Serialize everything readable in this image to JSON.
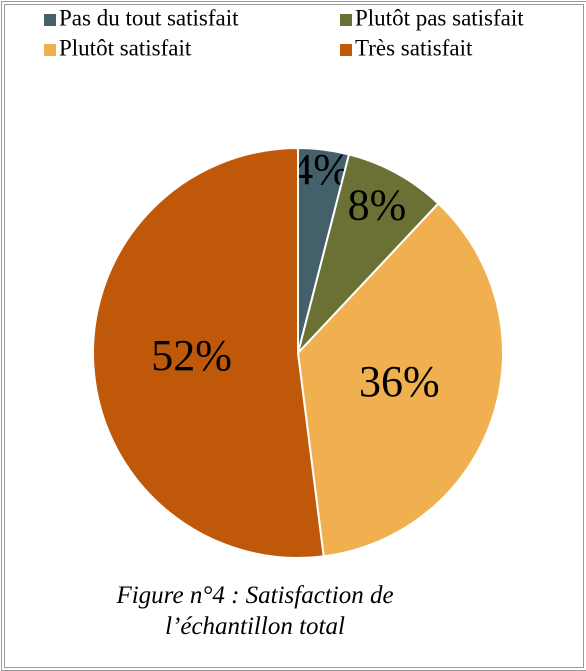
{
  "chart_data": {
    "type": "pie",
    "categories": [
      "Pas du tout satisfait",
      "Plutôt pas satisfait",
      "Plutôt satisfait",
      "Très satisfait"
    ],
    "values": [
      4,
      8,
      36,
      52
    ],
    "value_labels": [
      "4%",
      "8%",
      "36%",
      "52%"
    ],
    "colors": [
      "#44606a",
      "#6b7135",
      "#f0b050",
      "#c0580a"
    ],
    "legend": "top",
    "caption": "Figure n°4 : Satisfaction de l’échantillon total"
  }
}
